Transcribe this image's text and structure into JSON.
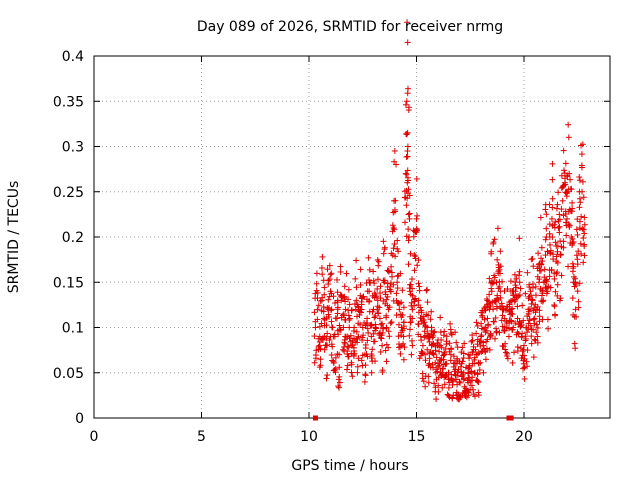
{
  "chart_data": {
    "type": "scatter",
    "title": "Day 089 of 2026, SRMTID for receiver nrmg",
    "xlabel": "GPS time / hours",
    "ylabel": "SRMTID / TECUs",
    "xlim": [
      0,
      24
    ],
    "ylim": [
      0,
      0.4
    ],
    "xticks": [
      0,
      5,
      10,
      15,
      20
    ],
    "xtick_labels": [
      "0",
      "5",
      "10",
      "15",
      "20"
    ],
    "yticks": [
      0,
      0.05,
      0.1,
      0.15,
      0.2,
      0.25,
      0.3,
      0.35,
      0.4
    ],
    "ytick_labels": [
      "0",
      "0.05",
      "0.1",
      "0.15",
      "0.2",
      "0.25",
      "0.3",
      "0.35",
      "0.4"
    ],
    "grid": true,
    "marker": "+",
    "color": "#e00000",
    "series": [
      {
        "name": "SRMTID",
        "x": [
          10.3,
          10.4,
          10.5,
          10.6,
          10.7,
          10.8,
          10.9,
          11.0,
          11.1,
          11.2,
          11.3,
          11.4,
          11.5,
          11.6,
          11.7,
          11.8,
          11.9,
          12.0,
          12.1,
          12.2,
          12.3,
          12.4,
          12.5,
          12.6,
          12.7,
          12.8,
          12.9,
          13.0,
          13.1,
          13.2,
          13.3,
          13.4,
          13.5,
          13.6,
          13.7,
          13.8,
          13.9,
          14.0,
          14.1,
          14.2,
          14.3,
          14.4,
          14.5,
          14.55,
          14.6,
          14.65,
          14.7,
          14.8,
          14.9,
          15.0,
          15.1,
          15.2,
          15.3,
          15.4,
          15.5,
          15.6,
          15.7,
          15.8,
          15.9,
          16.0,
          16.1,
          16.2,
          16.3,
          16.4,
          16.5,
          16.6,
          16.7,
          16.8,
          16.9,
          17.0,
          17.1,
          17.2,
          17.3,
          17.4,
          17.5,
          17.6,
          17.7,
          17.8,
          17.9,
          18.0,
          18.1,
          18.2,
          18.3,
          18.4,
          18.5,
          18.6,
          18.7,
          18.8,
          18.9,
          19.0,
          19.1,
          19.2,
          19.3,
          19.4,
          19.5,
          19.6,
          19.7,
          19.8,
          19.9,
          20.0,
          20.1,
          20.2,
          20.3,
          20.4,
          20.5,
          20.6,
          20.7,
          20.8,
          20.9,
          21.0,
          21.1,
          21.2,
          21.3,
          21.4,
          21.5,
          21.6,
          21.7,
          21.8,
          21.9,
          22.0,
          22.1,
          22.2,
          22.3,
          22.4,
          22.5,
          22.6,
          22.7,
          22.8
        ],
        "y": [
          0.1,
          0.12,
          0.09,
          0.13,
          0.11,
          0.08,
          0.12,
          0.14,
          0.1,
          0.09,
          0.11,
          0.07,
          0.13,
          0.1,
          0.12,
          0.09,
          0.11,
          0.08,
          0.1,
          0.13,
          0.09,
          0.12,
          0.1,
          0.07,
          0.11,
          0.14,
          0.09,
          0.12,
          0.1,
          0.13,
          0.11,
          0.08,
          0.15,
          0.1,
          0.12,
          0.14,
          0.18,
          0.23,
          0.15,
          0.12,
          0.1,
          0.09,
          0.27,
          0.35,
          0.3,
          0.2,
          0.14,
          0.11,
          0.18,
          0.22,
          0.13,
          0.09,
          0.08,
          0.07,
          0.1,
          0.06,
          0.08,
          0.07,
          0.05,
          0.06,
          0.08,
          0.05,
          0.07,
          0.06,
          0.05,
          0.07,
          0.04,
          0.06,
          0.05,
          0.04,
          0.06,
          0.05,
          0.03,
          0.05,
          0.04,
          0.06,
          0.05,
          0.07,
          0.06,
          0.09,
          0.08,
          0.1,
          0.11,
          0.12,
          0.14,
          0.15,
          0.13,
          0.16,
          0.14,
          0.12,
          0.11,
          0.1,
          0.09,
          0.12,
          0.1,
          0.14,
          0.11,
          0.15,
          0.09,
          0.08,
          0.1,
          0.12,
          0.14,
          0.13,
          0.11,
          0.12,
          0.15,
          0.17,
          0.13,
          0.18,
          0.14,
          0.2,
          0.22,
          0.16,
          0.19,
          0.21,
          0.18,
          0.24,
          0.26,
          0.22,
          0.27,
          0.2,
          0.15,
          0.12,
          0.17,
          0.21,
          0.25,
          0.19
        ]
      }
    ],
    "tick_marks_on_x_axis": [
      {
        "x": 10.3,
        "y": 0
      },
      {
        "x": 19.3,
        "y": 0
      },
      {
        "x": 19.4,
        "y": 0
      }
    ]
  }
}
